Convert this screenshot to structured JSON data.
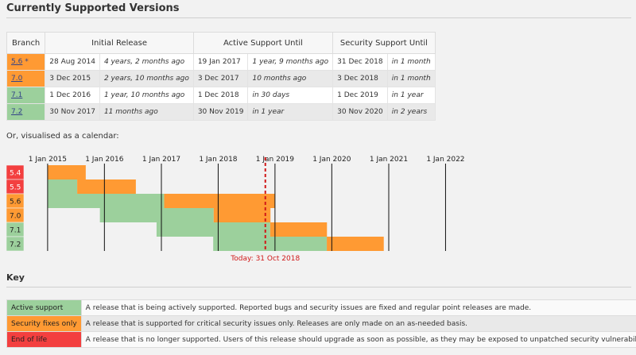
{
  "title": "Currently Supported Versions",
  "colors": {
    "active": "#9cd09c",
    "security": "#ff9a33",
    "eol": "#f33f3f",
    "today": "#d01818"
  },
  "table": {
    "headers": {
      "branch": "Branch",
      "initial": "Initial Release",
      "active": "Active Support Until",
      "security": "Security Support Until"
    },
    "rows": [
      {
        "branch": "5.6",
        "star": "*",
        "status": "security",
        "initial_date": "28 Aug 2014",
        "initial_rel": "4 years, 2 months ago",
        "active_date": "19 Jan 2017",
        "active_rel": "1 year, 9 months ago",
        "security_date": "31 Dec 2018",
        "security_rel": "in 1 month"
      },
      {
        "branch": "7.0",
        "star": "",
        "status": "security",
        "initial_date": "3 Dec 2015",
        "initial_rel": "2 years, 10 months ago",
        "active_date": "3 Dec 2017",
        "active_rel": "10 months ago",
        "security_date": "3 Dec 2018",
        "security_rel": "in 1 month"
      },
      {
        "branch": "7.1",
        "star": "",
        "status": "active",
        "initial_date": "1 Dec 2016",
        "initial_rel": "1 year, 10 months ago",
        "active_date": "1 Dec 2018",
        "active_rel": "in 30 days",
        "security_date": "1 Dec 2019",
        "security_rel": "in 1 year"
      },
      {
        "branch": "7.2",
        "star": "",
        "status": "active",
        "initial_date": "30 Nov 2017",
        "initial_rel": "11 months ago",
        "active_date": "30 Nov 2019",
        "active_rel": "in 1 year",
        "security_date": "30 Nov 2020",
        "security_rel": "in 2 years"
      }
    ]
  },
  "calendar": {
    "caption": "Or, visualised as a calendar:",
    "years": [
      "1 Jan 2015",
      "1 Jan 2016",
      "1 Jan 2017",
      "1 Jan 2018",
      "1 Jan 2019",
      "1 Jan 2020",
      "1 Jan 2021",
      "1 Jan 2022"
    ],
    "range": [
      "2014-06-01",
      "2022-06-01"
    ],
    "today": "2018-10-31",
    "today_label": "Today: 31 Oct 2018",
    "branches": [
      {
        "name": "5.4",
        "status": "eol",
        "start": "2015-01-01",
        "active_end": "2015-01-01",
        "security_end": "2015-09-03"
      },
      {
        "name": "5.5",
        "status": "eol",
        "start": "2015-01-01",
        "active_end": "2015-07-10",
        "security_end": "2016-07-21"
      },
      {
        "name": "5.6",
        "status": "security",
        "start": "2015-01-01",
        "active_end": "2017-01-19",
        "security_end": "2018-12-31"
      },
      {
        "name": "7.0",
        "status": "security",
        "start": "2015-12-03",
        "active_end": "2017-12-03",
        "security_end": "2018-12-03"
      },
      {
        "name": "7.1",
        "status": "active",
        "start": "2016-12-01",
        "active_end": "2018-12-01",
        "security_end": "2019-12-01"
      },
      {
        "name": "7.2",
        "status": "active",
        "start": "2017-11-30",
        "active_end": "2019-11-30",
        "security_end": "2020-11-30"
      }
    ]
  },
  "key": {
    "title": "Key",
    "items": [
      {
        "label": "Active support",
        "status": "active",
        "desc": "A release that is being actively supported. Reported bugs and security issues are fixed and regular point releases are made."
      },
      {
        "label": "Security fixes only",
        "status": "security",
        "desc": "A release that is supported for critical security issues only. Releases are only made on an as-needed basis."
      },
      {
        "label": "End of life",
        "status": "eol",
        "desc": "A release that is no longer supported. Users of this release should upgrade as soon as possible, as they may be exposed to unpatched security vulnerabilities."
      }
    ]
  }
}
